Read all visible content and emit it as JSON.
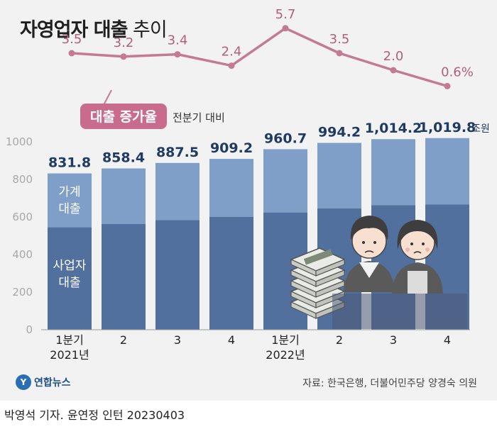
{
  "title": {
    "main": "자영업자 대출",
    "sub": "추이"
  },
  "colors": {
    "background": "#f2f2f2",
    "household": "#7f9ec8",
    "business": "#52709e",
    "line": "#c47a93",
    "total_label": "#1f3a63",
    "rate_label": "#b25f7c",
    "badge": "#c96b8c"
  },
  "chart_data": {
    "type": "bar",
    "stacked": true,
    "unit": "조원",
    "categories": [
      "1분기\n2021년",
      "2",
      "3",
      "4",
      "1분기\n2022년",
      "2",
      "3",
      "4"
    ],
    "totals": [
      831.8,
      858.4,
      887.5,
      909.2,
      960.7,
      994.2,
      1014.2,
      1019.8
    ],
    "total_labels": [
      "831.8",
      "858.4",
      "887.5",
      "909.2",
      "960.7",
      "994.2",
      "1,014.2",
      "1,019.8"
    ],
    "series": [
      {
        "name": "사업자\n대출",
        "values": [
          545,
          563,
          583,
          601,
          624,
          646,
          663,
          667
        ]
      },
      {
        "name": "가계\n대출",
        "values": [
          286.8,
          295.4,
          304.5,
          308.2,
          336.7,
          348.2,
          351.2,
          352.8
        ]
      }
    ],
    "ylim": [
      0,
      1000
    ],
    "yticks": [
      0,
      200,
      400,
      600,
      800,
      1000
    ],
    "line": {
      "name": "대출 증가율",
      "note": "전분기 대비",
      "values": [
        3.5,
        3.2,
        3.4,
        2.4,
        5.7,
        3.5,
        2.0,
        0.6
      ],
      "labels": [
        "3.5",
        "3.2",
        "3.4",
        "2.4",
        "5.7",
        "3.5",
        "2.0",
        "0.6%"
      ],
      "ylim": [
        0,
        6
      ]
    }
  },
  "source": "자료: 한국은행, 더불어민주당 양경숙 의원",
  "logo": {
    "mark": "Y",
    "text": "연합뉴스"
  },
  "byline": "박영석 기자. 윤연정 인턴  20230403",
  "illustration": {
    "icons": [
      "cash-stack-icon",
      "shop-owner-man-icon",
      "shop-owner-woman-icon"
    ]
  }
}
